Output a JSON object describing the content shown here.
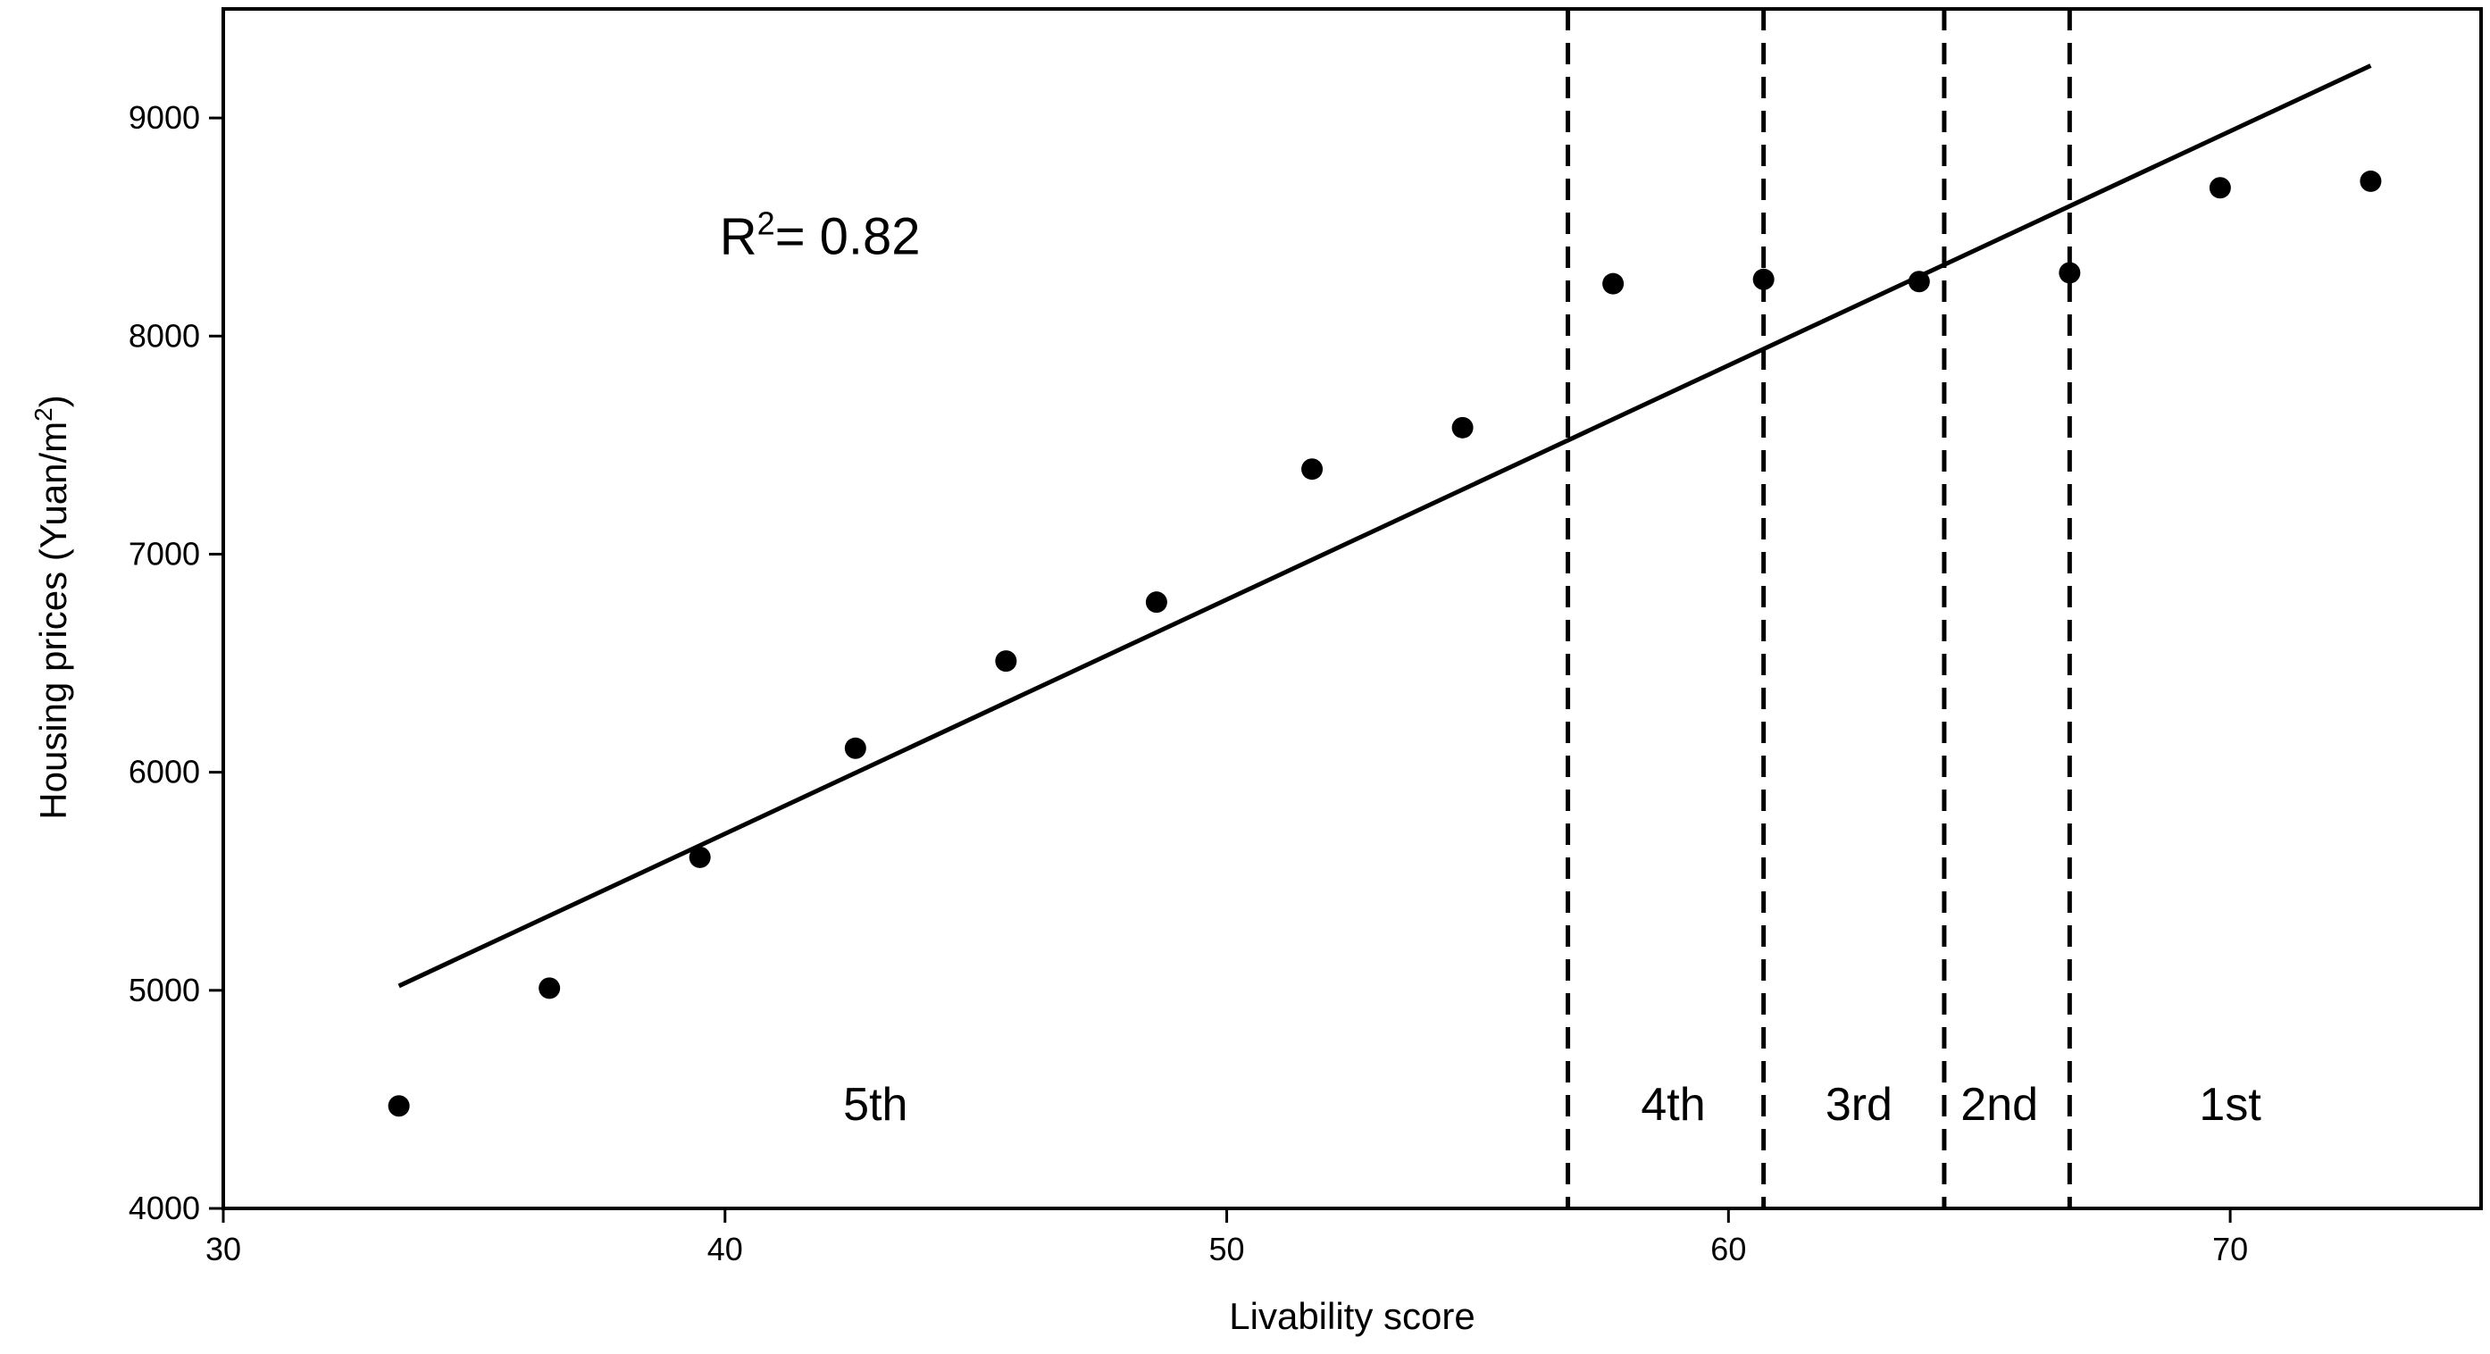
{
  "chart_data": {
    "type": "scatter",
    "xlabel": "Livability score",
    "ylabel": "Housing prices (Yuan/m²)",
    "ylabel_parts": {
      "main": "Housing prices (Yuan/m",
      "sup": "2",
      "close": ")"
    },
    "xlim": [
      30,
      75
    ],
    "ylim": [
      4000,
      9500
    ],
    "x_ticks": [
      30,
      40,
      50,
      60,
      70
    ],
    "y_ticks": [
      4000,
      5000,
      6000,
      7000,
      8000,
      9000
    ],
    "grid": false,
    "points": [
      {
        "x": 33.5,
        "y": 4470
      },
      {
        "x": 36.5,
        "y": 5010
      },
      {
        "x": 39.5,
        "y": 5610
      },
      {
        "x": 42.6,
        "y": 6110
      },
      {
        "x": 45.6,
        "y": 6510
      },
      {
        "x": 48.6,
        "y": 6780
      },
      {
        "x": 51.7,
        "y": 7390
      },
      {
        "x": 54.7,
        "y": 7580
      },
      {
        "x": 57.7,
        "y": 8240
      },
      {
        "x": 60.7,
        "y": 8260
      },
      {
        "x": 63.8,
        "y": 8250
      },
      {
        "x": 66.8,
        "y": 8290
      },
      {
        "x": 69.8,
        "y": 8680
      },
      {
        "x": 72.8,
        "y": 8710
      }
    ],
    "fit_line": [
      {
        "x": 33.5,
        "y": 5020
      },
      {
        "x": 72.8,
        "y": 9240
      }
    ],
    "dividers": [
      56.8,
      60.7,
      64.3,
      66.8
    ],
    "zones": [
      {
        "label": "5th",
        "x": 43.0
      },
      {
        "label": "4th",
        "x": 58.9
      },
      {
        "label": "3rd",
        "x": 62.6
      },
      {
        "label": "2nd",
        "x": 65.4
      },
      {
        "label": "1st",
        "x": 70.0
      }
    ],
    "zone_label_y": 4480,
    "annotation": {
      "text": "R² = 0.82",
      "prefix": "R",
      "sup": "2",
      "suffix": "= 0.82",
      "x": 40,
      "y": 8450
    }
  }
}
